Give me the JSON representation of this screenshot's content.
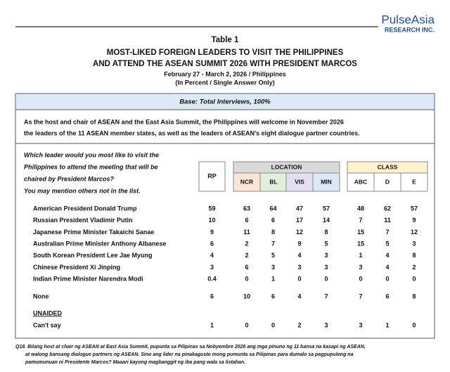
{
  "logo": {
    "name": "PulseAsia",
    "sub": "RESEARCH INC."
  },
  "header": {
    "table_no": "Table 1",
    "title": [
      "MOST-LIKED FOREIGN LEADERS TO VISIT THE PHILIPPINES",
      "AND ATTEND THE ASEAN SUMMIT 2026 WITH PRESIDENT MARCOS"
    ],
    "date": "February 27 - March 2, 2026 / Philippines",
    "subtitle": "(In Percent / Single Answer Only)"
  },
  "base": "Base: Total Interviews, 100%",
  "intro": [
    "As the host and chair of ASEAN and the East Asia Summit, the Philippines will welcome in November 2026",
    "the leaders of the 11 ASEAN member states, as well as the leaders of ASEAN’s eight dialogue partner countries."
  ],
  "question": [
    "Which leader would you most like to visit the",
    "Philippines to attend the meeting that will be",
    "chaired by President Marcos?",
    "You may mention others not in the list."
  ],
  "table": {
    "rp": "RP",
    "location": {
      "label": "LOCATION",
      "columns": [
        "NCR",
        "BL",
        "VIS",
        "MIN"
      ]
    },
    "class": {
      "label": "CLASS",
      "columns": [
        "ABC",
        "D",
        "E"
      ]
    },
    "rows": [
      {
        "label": "American President Donald Trump",
        "values": [
          59,
          63,
          64,
          47,
          57,
          48,
          62,
          57
        ]
      },
      {
        "label": "Russian President Vladimir Putin",
        "values": [
          10,
          6,
          6,
          17,
          14,
          7,
          11,
          9
        ]
      },
      {
        "label": "Japanese Prime Minister Takaichi Sanae",
        "values": [
          9,
          11,
          8,
          12,
          8,
          15,
          7,
          12
        ]
      },
      {
        "label": "Australian Prime Minister Anthony Albanese",
        "values": [
          6,
          2,
          7,
          9,
          5,
          15,
          5,
          3
        ]
      },
      {
        "label": "South Korean President Lee Jae Myung",
        "values": [
          4,
          2,
          5,
          4,
          3,
          1,
          4,
          8
        ]
      },
      {
        "label": "Chinese President Xi Jinping",
        "values": [
          3,
          6,
          3,
          3,
          3,
          3,
          4,
          2
        ]
      },
      {
        "label": "Indian Prime Minister Narendra Modi",
        "values": [
          0.4,
          0,
          1,
          0,
          0,
          0,
          0,
          0
        ]
      }
    ],
    "none": {
      "label": "None",
      "values": [
        6,
        10,
        6,
        4,
        7,
        7,
        6,
        8
      ]
    },
    "unaided_heading": "UNAIDED",
    "cant_say": {
      "label": "Can't say",
      "values": [
        1,
        0,
        0,
        2,
        3,
        3,
        1,
        0
      ]
    }
  },
  "footnote": [
    "Q18. Bilang host at chair ng ASEAN at East Asia Summit, pupunta sa Pilipinas sa Nobyembre 2026 ang mga pinuno ng 11 bansa na kasapi ng ASEAN,",
    "at walong bansang dialogue partners ng ASEAN. Sino ang lider na pinakagusto mong pumunta sa Pilipinas para dumalo sa pagpupulong na",
    "pamumunuan ni Presidente Marcos? Maaari kayong magbanggit ng iba pang wala sa listahan."
  ]
}
